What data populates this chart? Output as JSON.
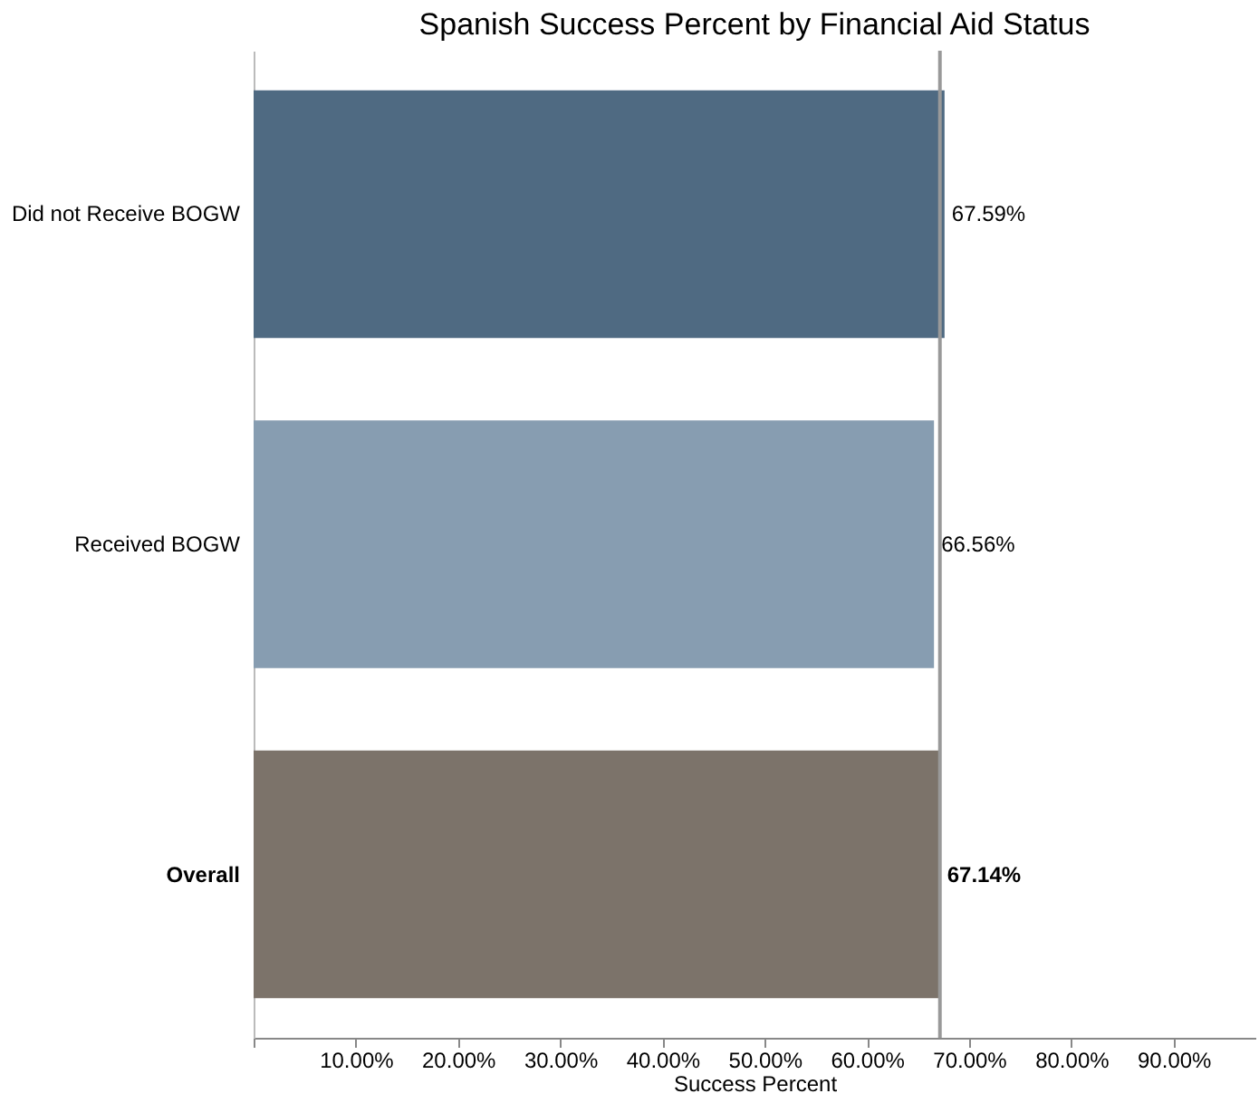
{
  "chart_data": {
    "type": "bar",
    "orientation": "horizontal",
    "title": "Spanish Success Percent by Financial Aid Status",
    "xlabel": "Success Percent",
    "categories": [
      "Did not Receive BOGW",
      "Received BOGW",
      "Overall"
    ],
    "values": [
      67.59,
      66.56,
      67.14
    ],
    "colors": [
      "#4f6a82",
      "#879db1",
      "#7c736a"
    ],
    "value_labels": [
      "67.59%",
      "66.56%",
      "67.14%"
    ],
    "xlim": [
      0,
      98
    ],
    "xticks": [
      {
        "value": 0,
        "label": null
      },
      {
        "value": 10,
        "label": "10.00%"
      },
      {
        "value": 20,
        "label": "20.00%"
      },
      {
        "value": 30,
        "label": "30.00%"
      },
      {
        "value": 40,
        "label": "40.00%"
      },
      {
        "value": 50,
        "label": "50.00%"
      },
      {
        "value": 60,
        "label": "60.00%"
      },
      {
        "value": 70,
        "label": "70.00%"
      },
      {
        "value": 80,
        "label": "80.00%"
      },
      {
        "value": 90,
        "label": "90.00%"
      }
    ],
    "ref_lines": [
      {
        "axis": "x",
        "value": 67.14,
        "color": "#999999"
      }
    ],
    "grid": false
  }
}
